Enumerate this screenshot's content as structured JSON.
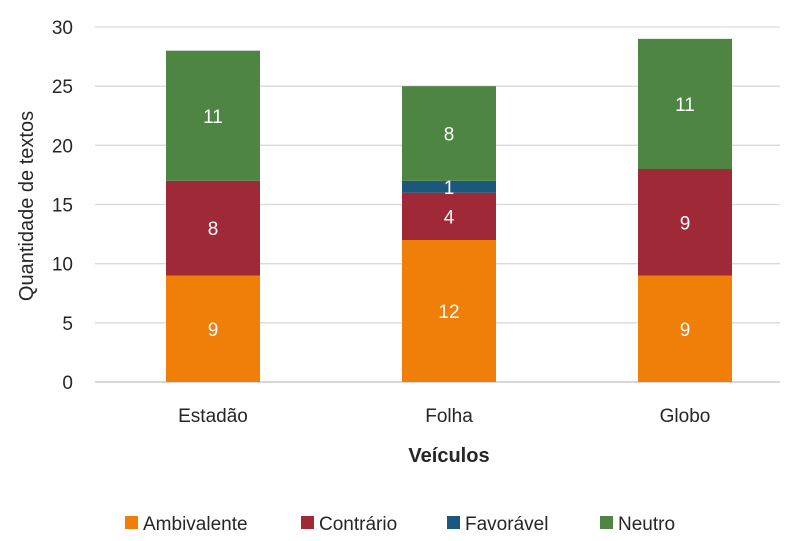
{
  "chart_data": {
    "type": "bar",
    "stacked": true,
    "categories": [
      "Estadão",
      "Folha",
      "Globo"
    ],
    "series": [
      {
        "name": "Ambivalente",
        "values": [
          9,
          12,
          9
        ],
        "color": "#F07F09"
      },
      {
        "name": "Contrário",
        "values": [
          8,
          4,
          9
        ],
        "color": "#9F2936"
      },
      {
        "name": "Favorável",
        "values": [
          0,
          1,
          0
        ],
        "color": "#1B587C"
      },
      {
        "name": "Neutro",
        "values": [
          11,
          8,
          11
        ],
        "color": "#4E8542"
      }
    ],
    "xlabel": "Veículos",
    "ylabel": "Quantidade de textos",
    "ylim": [
      0,
      30
    ],
    "yticks": [
      "0",
      "5",
      "10",
      "15",
      "20",
      "25",
      "30"
    ],
    "grid": true,
    "legend_position": "bottom"
  }
}
